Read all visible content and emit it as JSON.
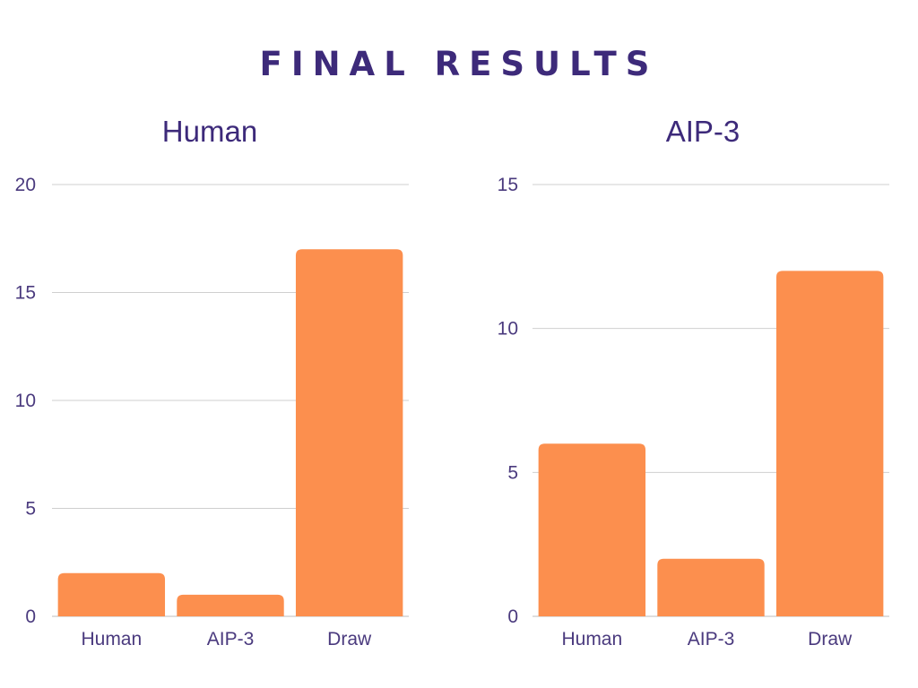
{
  "page": {
    "title": "FINAL RESULTS"
  },
  "chart_data": [
    {
      "type": "bar",
      "title": "Human",
      "categories": [
        "Human",
        "AIP-3",
        "Draw"
      ],
      "values": [
        2,
        1,
        17
      ],
      "ylim": [
        0,
        20
      ],
      "yticks": [
        0,
        5,
        10,
        15,
        20
      ],
      "grid": true,
      "bar_color": "#fc8f4e"
    },
    {
      "type": "bar",
      "title": "AIP-3",
      "categories": [
        "Human",
        "AIP-3",
        "Draw"
      ],
      "values": [
        6,
        2,
        12
      ],
      "ylim": [
        0,
        15
      ],
      "yticks": [
        0,
        5,
        10,
        15
      ],
      "grid": true,
      "bar_color": "#fc8f4e"
    }
  ]
}
